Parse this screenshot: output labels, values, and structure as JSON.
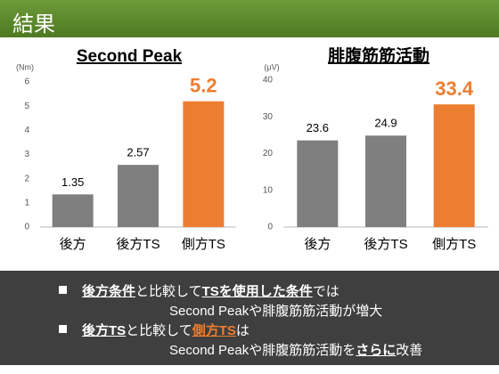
{
  "header": {
    "title": "結果"
  },
  "chart_data": [
    {
      "type": "bar",
      "title": "Second Peak",
      "unit": "(Nm)",
      "categories": [
        "後方",
        "後方TS",
        "側方TS"
      ],
      "values": [
        1.35,
        2.57,
        5.2
      ],
      "colors": [
        "#7f7f7f",
        "#7f7f7f",
        "#ed7d31"
      ],
      "ylim": [
        0,
        6
      ],
      "yticks": [
        0,
        1,
        2,
        3,
        4,
        5,
        6
      ],
      "grid": false
    },
    {
      "type": "bar",
      "title": "腓腹筋筋活動",
      "unit": "(μV)",
      "categories": [
        "後方",
        "後方TS",
        "側方TS"
      ],
      "values": [
        23.6,
        24.9,
        33.4
      ],
      "colors": [
        "#7f7f7f",
        "#7f7f7f",
        "#ed7d31"
      ],
      "ylim": [
        0,
        40
      ],
      "yticks": [
        0,
        10,
        20,
        30,
        40
      ],
      "grid": false
    }
  ],
  "notes": [
    [
      {
        "text": "後方条件",
        "underline": true
      },
      {
        "text": "と比較して"
      },
      {
        "text": "TSを使用した条件",
        "underline": true
      },
      {
        "text": "では"
      }
    ],
    [
      {
        "text": "Second Peakや腓腹筋筋活動が増大"
      }
    ],
    [
      {
        "text": "後方TS",
        "underline": true
      },
      {
        "text": "と比較して"
      },
      {
        "text": "側方TS",
        "underline": true,
        "color": "#ed7d31"
      },
      {
        "text": "は"
      }
    ],
    [
      {
        "text": "Second Peakや腓腹筋筋活動を"
      },
      {
        "text": "さらに",
        "underline": true
      },
      {
        "text": "改善"
      }
    ]
  ]
}
